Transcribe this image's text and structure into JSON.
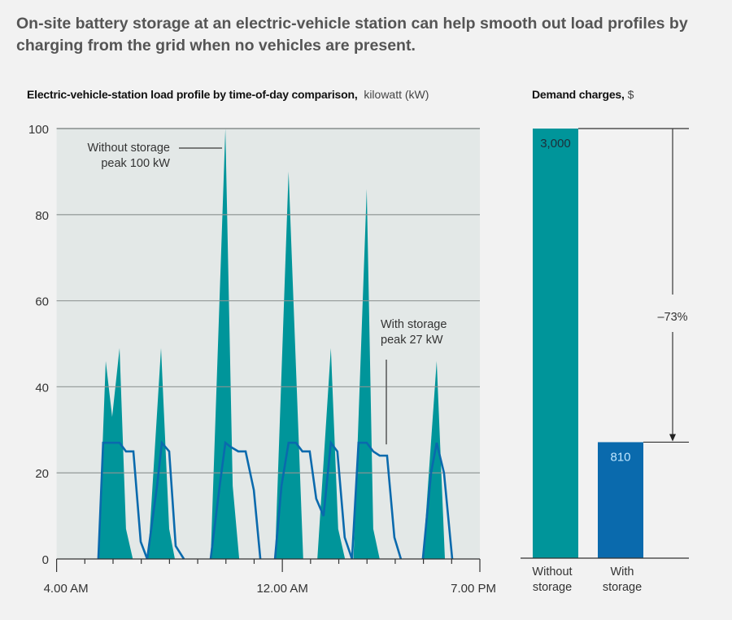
{
  "headline": {
    "line1": "On-site battery storage at an electric-vehicle station can help smooth out load profiles by",
    "line2": "charging from the grid when no vehicles are present."
  },
  "colors": {
    "without_storage": "#00959a",
    "with_storage": "#0a6aad",
    "plot_bg": "#e3e8e7",
    "page_bg": "#f2f2f2",
    "grid": "#8e9493"
  },
  "chart_data": [
    {
      "type": "area",
      "title": "Electric-vehicle-station load profile by time-of-day comparison",
      "unit": "kilowatt (kW)",
      "xlabel": "",
      "ylabel": "kW",
      "ylim": [
        0,
        100
      ],
      "xlim": [
        0,
        15
      ],
      "yticks": [
        0,
        20,
        40,
        60,
        80,
        100
      ],
      "ytick_labels": [
        "0",
        "20",
        "40",
        "60",
        "80",
        "100"
      ],
      "xticks_minor": [
        0,
        1,
        2,
        3,
        4,
        5,
        6,
        7,
        8,
        9,
        10,
        11,
        12,
        13,
        14,
        15
      ],
      "xtick_labels": [
        {
          "x": 0,
          "label": "4.00 AM"
        },
        {
          "x": 8,
          "label": "12.00 AM"
        },
        {
          "x": 15,
          "label": "7.00 PM"
        }
      ],
      "grid": true,
      "series": [
        {
          "name": "Without storage",
          "style": "filled-area",
          "groups": [
            [
              [
                1.48,
                0
              ],
              [
                1.74,
                46
              ],
              [
                1.97,
                33
              ],
              [
                2.23,
                49
              ],
              [
                2.46,
                7
              ],
              [
                2.7,
                0
              ]
            ],
            [
              [
                3.24,
                0
              ],
              [
                3.7,
                49
              ],
              [
                3.99,
                7
              ],
              [
                4.19,
                0
              ]
            ],
            [
              [
                5.46,
                0
              ],
              [
                5.98,
                100
              ],
              [
                6.24,
                17
              ],
              [
                6.47,
                0
              ]
            ],
            [
              [
                7.74,
                0
              ],
              [
                8.22,
                90
              ],
              [
                8.74,
                0
              ]
            ],
            [
              [
                9.24,
                0
              ],
              [
                9.72,
                49
              ],
              [
                9.98,
                7
              ],
              [
                10.22,
                0
              ]
            ],
            [
              [
                10.52,
                0
              ],
              [
                10.99,
                86
              ],
              [
                11.22,
                7
              ],
              [
                11.45,
                0
              ]
            ],
            [
              [
                12.98,
                0
              ],
              [
                13.47,
                46
              ],
              [
                13.76,
                0
              ]
            ]
          ]
        },
        {
          "name": "With storage",
          "style": "line",
          "groups": [
            [
              [
                1.48,
                0
              ],
              [
                1.65,
                27
              ],
              [
                2.23,
                27
              ],
              [
                2.46,
                25
              ],
              [
                2.72,
                25
              ],
              [
                2.98,
                4
              ],
              [
                3.21,
                0
              ]
            ],
            [
              [
                3.21,
                0
              ],
              [
                3.56,
                17
              ],
              [
                3.73,
                27
              ],
              [
                3.99,
                25
              ],
              [
                4.22,
                3
              ],
              [
                4.51,
                0
              ]
            ],
            [
              [
                5.46,
                0
              ],
              [
                5.78,
                17
              ],
              [
                5.98,
                27
              ],
              [
                6.18,
                26
              ],
              [
                6.44,
                25
              ],
              [
                6.7,
                25
              ],
              [
                6.99,
                16
              ],
              [
                7.22,
                0
              ]
            ],
            [
              [
                7.74,
                0
              ],
              [
                7.97,
                17
              ],
              [
                8.22,
                27
              ],
              [
                8.48,
                27
              ],
              [
                8.71,
                25
              ],
              [
                8.97,
                25
              ],
              [
                9.2,
                14
              ],
              [
                9.46,
                10
              ],
              [
                9.72,
                27
              ],
              [
                9.95,
                25
              ],
              [
                10.21,
                5
              ],
              [
                10.47,
                0
              ]
            ],
            [
              [
                10.47,
                0
              ],
              [
                10.7,
                27
              ],
              [
                10.99,
                27
              ],
              [
                11.22,
                25
              ],
              [
                11.45,
                24
              ],
              [
                11.71,
                24
              ],
              [
                11.97,
                5
              ],
              [
                12.2,
                0
              ]
            ],
            [
              [
                12.98,
                0
              ],
              [
                13.27,
                20
              ],
              [
                13.47,
                27
              ],
              [
                13.73,
                20
              ],
              [
                14.02,
                0
              ]
            ]
          ]
        }
      ],
      "annotations": [
        {
          "text_line1": "Without storage",
          "text_line2": "peak 100 kW",
          "x": 5.98,
          "y": 96
        },
        {
          "text_line1": "With storage",
          "text_line2": "peak 27 kW",
          "x": 11.7,
          "y": 27
        }
      ]
    },
    {
      "type": "bar",
      "title": "Demand charges",
      "unit": "$",
      "categories": [
        "Without storage",
        "With storage"
      ],
      "category_lines": [
        [
          "Without",
          "storage"
        ],
        [
          "With",
          "storage"
        ]
      ],
      "values": [
        3000,
        810
      ],
      "value_labels": [
        "3,000",
        "810"
      ],
      "ylim": [
        0,
        3000
      ],
      "change_label": "–73%"
    }
  ]
}
